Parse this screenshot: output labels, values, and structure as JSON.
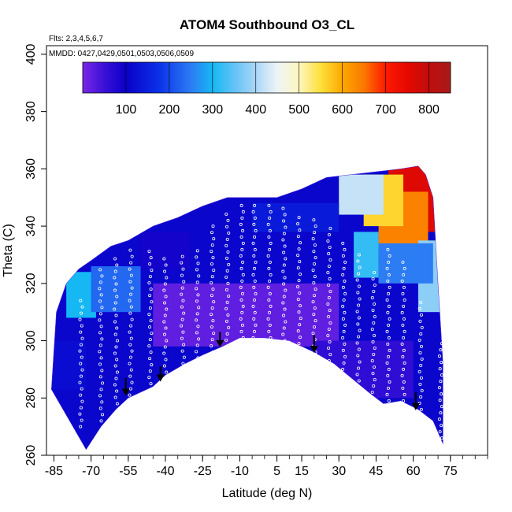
{
  "chart_data": {
    "type": "heatmap",
    "title": "ATOM4 Southbound O3_CL",
    "subtitle_flights": "Flts: 2,3,4,5,6,7",
    "subtitle_dates": "MMDD: 0427,0429,0501,0503,0506,0509",
    "xlabel": "Latitude (deg N)",
    "ylabel": "Theta (C)",
    "xlim": [
      -88,
      90
    ],
    "ylim": [
      260,
      403
    ],
    "x_ticks": [
      -85,
      -70,
      -55,
      -40,
      -25,
      -10,
      5,
      15,
      30,
      45,
      60,
      75
    ],
    "x_tick_labels": [
      "-85",
      "-70",
      "-55",
      "-40",
      "-25",
      "-10",
      "5",
      "15",
      "30",
      "45",
      "60",
      "75"
    ],
    "x_minor_step": 5,
    "y_ticks": [
      260,
      280,
      300,
      320,
      340,
      360,
      380,
      400
    ],
    "y_tick_labels": [
      "260",
      "280",
      "300",
      "320",
      "340",
      "360",
      "380",
      "400"
    ],
    "colorbar": {
      "min": 0,
      "max": 850,
      "tick_values": [
        100,
        200,
        300,
        400,
        500,
        600,
        700,
        800
      ],
      "tick_labels": [
        "100",
        "200",
        "300",
        "400",
        "500",
        "600",
        "700",
        "800"
      ],
      "color_stops": [
        [
          0,
          "#7a28e6"
        ],
        [
          50,
          "#3a10d8"
        ],
        [
          100,
          "#0a00c8"
        ],
        [
          175,
          "#0a30e8"
        ],
        [
          250,
          "#2c7cf4"
        ],
        [
          300,
          "#16b8f4"
        ],
        [
          350,
          "#62c2f6"
        ],
        [
          400,
          "#aad6f8"
        ],
        [
          450,
          "#eef4f6"
        ],
        [
          500,
          "#fdf6c0"
        ],
        [
          550,
          "#fde03a"
        ],
        [
          600,
          "#fca800"
        ],
        [
          650,
          "#fb7800"
        ],
        [
          700,
          "#fe1a00"
        ],
        [
          750,
          "#e60800"
        ],
        [
          800,
          "#c00d0d"
        ],
        [
          850,
          "#a81a1a"
        ]
      ]
    },
    "data_floor": [
      [
        -72,
        262
      ],
      [
        -66,
        270
      ],
      [
        -60,
        276
      ],
      [
        -55,
        280
      ],
      [
        -50,
        282
      ],
      [
        -45,
        284
      ],
      [
        -40,
        288
      ],
      [
        -32,
        292
      ],
      [
        -25,
        295
      ],
      [
        -17,
        298
      ],
      [
        -10,
        301
      ],
      [
        0,
        301
      ],
      [
        10,
        300
      ],
      [
        20,
        296
      ],
      [
        28,
        292
      ],
      [
        35,
        287
      ],
      [
        42,
        282
      ],
      [
        48,
        278
      ],
      [
        55,
        279
      ],
      [
        62,
        276
      ],
      [
        68,
        272
      ],
      [
        72,
        264
      ]
    ],
    "data_ceiling": [
      [
        -86,
        283
      ],
      [
        -84,
        310
      ],
      [
        -80,
        320
      ],
      [
        -75,
        325
      ],
      [
        -70,
        328
      ],
      [
        -62,
        333
      ],
      [
        -55,
        335
      ],
      [
        -45,
        340
      ],
      [
        -35,
        343
      ],
      [
        -25,
        347
      ],
      [
        -15,
        350
      ],
      [
        -5,
        350
      ],
      [
        5,
        350
      ],
      [
        15,
        353
      ],
      [
        25,
        357
      ],
      [
        35,
        358
      ],
      [
        45,
        359
      ],
      [
        55,
        360
      ],
      [
        62,
        361
      ],
      [
        65,
        358
      ],
      [
        68,
        350
      ],
      [
        70,
        320
      ],
      [
        72,
        292
      ]
    ],
    "regions": [
      {
        "x": [
          50,
          70
        ],
        "y": [
          338,
          361
        ],
        "value": 760
      },
      {
        "x": [
          46,
          66
        ],
        "y": [
          332,
          352
        ],
        "value": 640
      },
      {
        "x": [
          40,
          56
        ],
        "y": [
          340,
          358
        ],
        "value": 560
      },
      {
        "x": [
          30,
          48
        ],
        "y": [
          344,
          358
        ],
        "value": 420
      },
      {
        "x": [
          62,
          72
        ],
        "y": [
          310,
          335
        ],
        "value": 380
      },
      {
        "x": [
          36,
          46
        ],
        "y": [
          322,
          338
        ],
        "value": 320
      },
      {
        "x": [
          -80,
          -68
        ],
        "y": [
          308,
          324
        ],
        "value": 300
      },
      {
        "x": [
          -5,
          30
        ],
        "y": [
          338,
          348
        ],
        "value": 140
      },
      {
        "x": [
          46,
          68
        ],
        "y": [
          320,
          334
        ],
        "value": 250
      },
      {
        "x": [
          -50,
          -30
        ],
        "y": [
          325,
          338
        ],
        "value": 90
      },
      {
        "x": [
          -70,
          -50
        ],
        "y": [
          310,
          326
        ],
        "value": 230
      },
      {
        "x": [
          -86,
          -72
        ],
        "y": [
          283,
          300
        ],
        "value": 120
      },
      {
        "x": [
          -45,
          30
        ],
        "y": [
          298,
          320
        ],
        "value": 20
      },
      {
        "x": [
          20,
          60
        ],
        "y": [
          280,
          300
        ],
        "value": 60
      }
    ],
    "flight_tracks": [
      {
        "lat": -74,
        "theta": [
          270,
          315
        ]
      },
      {
        "lat": -66,
        "theta": [
          272,
          325
        ]
      },
      {
        "lat": -60,
        "theta": [
          278,
          330
        ]
      },
      {
        "lat": -54,
        "theta": [
          281,
          333
        ]
      },
      {
        "lat": -46,
        "theta": [
          285,
          332
        ]
      },
      {
        "lat": -40,
        "theta": [
          289,
          330
        ]
      },
      {
        "lat": -33,
        "theta": [
          292,
          330
        ]
      },
      {
        "lat": -27,
        "theta": [
          294,
          333
        ]
      },
      {
        "lat": -21,
        "theta": [
          296,
          340
        ]
      },
      {
        "lat": -15,
        "theta": [
          298,
          346
        ]
      },
      {
        "lat": -9,
        "theta": [
          301,
          349
        ]
      },
      {
        "lat": -4,
        "theta": [
          301,
          348
        ]
      },
      {
        "lat": 2,
        "theta": [
          301,
          348
        ]
      },
      {
        "lat": 8,
        "theta": [
          300,
          347
        ]
      },
      {
        "lat": 14,
        "theta": [
          299,
          344
        ]
      },
      {
        "lat": 20,
        "theta": [
          296,
          343
        ]
      },
      {
        "lat": 26,
        "theta": [
          293,
          340
        ]
      },
      {
        "lat": 32,
        "theta": [
          290,
          336
        ]
      },
      {
        "lat": 38,
        "theta": [
          286,
          330
        ]
      },
      {
        "lat": 44,
        "theta": [
          282,
          324
        ]
      },
      {
        "lat": 50,
        "theta": [
          279,
          332
        ]
      },
      {
        "lat": 56,
        "theta": [
          279,
          328
        ]
      },
      {
        "lat": 63,
        "theta": [
          276,
          315
        ]
      },
      {
        "lat": 71,
        "theta": [
          266,
          300
        ]
      }
    ],
    "arrows": [
      {
        "lat": -56,
        "theta_top": 287,
        "theta_bottom": 281
      },
      {
        "lat": -42,
        "theta_top": 291,
        "theta_bottom": 286
      },
      {
        "lat": -18,
        "theta_top": 303,
        "theta_bottom": 298
      },
      {
        "lat": 20,
        "theta_top": 302,
        "theta_bottom": 296
      },
      {
        "lat": 61,
        "theta_top": 282,
        "theta_bottom": 276
      }
    ]
  }
}
